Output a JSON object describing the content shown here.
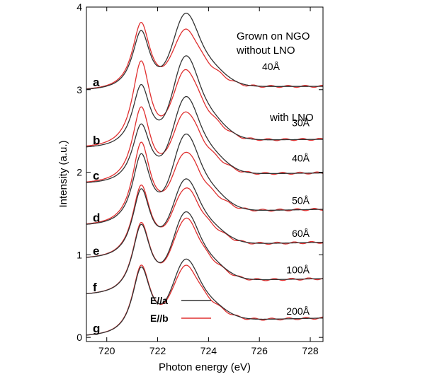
{
  "chart_data": {
    "type": "line",
    "xlabel": "Photon energy (eV)",
    "ylabel": "Intensity (a.u.)",
    "xlim": [
      719.2,
      728.5
    ],
    "ylim": [
      -0.05,
      4.0
    ],
    "xticks": [
      720,
      722,
      724,
      726,
      728
    ],
    "yticks": [
      0,
      1,
      2,
      3,
      4
    ],
    "series_colors": {
      "E//a": "#333333",
      "E//b": "#e03030"
    },
    "legend": [
      {
        "name": "E//a",
        "color": "#333333"
      },
      {
        "name": "E//b",
        "color": "#e03030"
      }
    ],
    "annotations": {
      "top_line1": "Grown on NGO",
      "top_line2": "without LNO",
      "with_lno": "with LNO"
    },
    "panels": [
      {
        "label": "a",
        "thickness": "40Å",
        "baseline": 2.98,
        "a": {
          "p1": 0.77,
          "valley": 0.4,
          "p2": 0.9,
          "tail": 0.05
        },
        "b": {
          "p1": 0.86,
          "valley": 0.36,
          "p2": 0.7,
          "tail": 0.05
        }
      },
      {
        "label": "b",
        "thickness": "30Å",
        "baseline": 2.28,
        "a": {
          "p1": 0.82,
          "valley": 0.5,
          "p2": 1.08,
          "tail": 0.1
        },
        "b": {
          "p1": 1.1,
          "valley": 0.58,
          "p2": 0.9,
          "tail": 0.1
        }
      },
      {
        "label": "c",
        "thickness": "40Å",
        "baseline": 1.85,
        "a": {
          "p1": 0.77,
          "valley": 0.42,
          "p2": 1.02,
          "tail": 0.12
        },
        "b": {
          "p1": 0.97,
          "valley": 0.5,
          "p2": 0.83,
          "tail": 0.12
        }
      },
      {
        "label": "d",
        "thickness": "50Å",
        "baseline": 1.34,
        "a": {
          "p1": 0.92,
          "valley": 0.48,
          "p2": 1.07,
          "tail": 0.18
        },
        "b": {
          "p1": 1.05,
          "valley": 0.54,
          "p2": 0.85,
          "tail": 0.18
        }
      },
      {
        "label": "e",
        "thickness": "60Å",
        "baseline": 0.94,
        "a": {
          "p1": 0.89,
          "valley": 0.48,
          "p2": 0.93,
          "tail": 0.18
        },
        "b": {
          "p1": 0.93,
          "valley": 0.5,
          "p2": 0.82,
          "tail": 0.18
        }
      },
      {
        "label": "f",
        "thickness": "100Å",
        "baseline": 0.5,
        "a": {
          "p1": 0.9,
          "valley": 0.5,
          "p2": 0.97,
          "tail": 0.18
        },
        "b": {
          "p1": 0.92,
          "valley": 0.5,
          "p2": 0.89,
          "tail": 0.18
        }
      },
      {
        "label": "g",
        "thickness": "200Å",
        "baseline": 0.0,
        "a": {
          "p1": 0.88,
          "valley": 0.5,
          "p2": 0.9,
          "tail": 0.2
        },
        "b": {
          "p1": 0.9,
          "valley": 0.5,
          "p2": 0.82,
          "tail": 0.2
        }
      }
    ]
  }
}
